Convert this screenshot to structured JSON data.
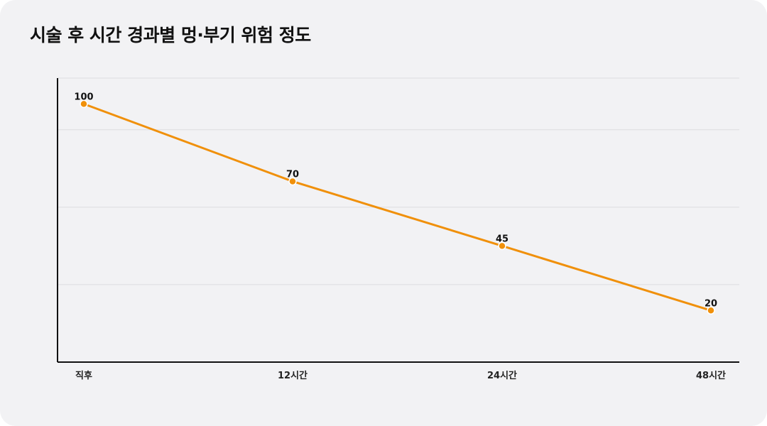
{
  "chart_data": {
    "type": "line",
    "title": "시술 후 시간 경과별 멍·부기 위험 정도",
    "xlabel": "",
    "ylabel": "",
    "categories": [
      "직후",
      "12시간",
      "24시간",
      "48시간"
    ],
    "series": [
      {
        "values": [
          100,
          70,
          45,
          20
        ]
      }
    ],
    "ylim": [
      0,
      110
    ],
    "gridlines": [
      30,
      60,
      90,
      110
    ],
    "grid": true,
    "legend": "none",
    "line_color": "#f0900a",
    "marker_color": "#f0900a",
    "marker_stroke": "#ffffff",
    "grid_color": "#dcdcdf",
    "axis_color": "#111111"
  }
}
